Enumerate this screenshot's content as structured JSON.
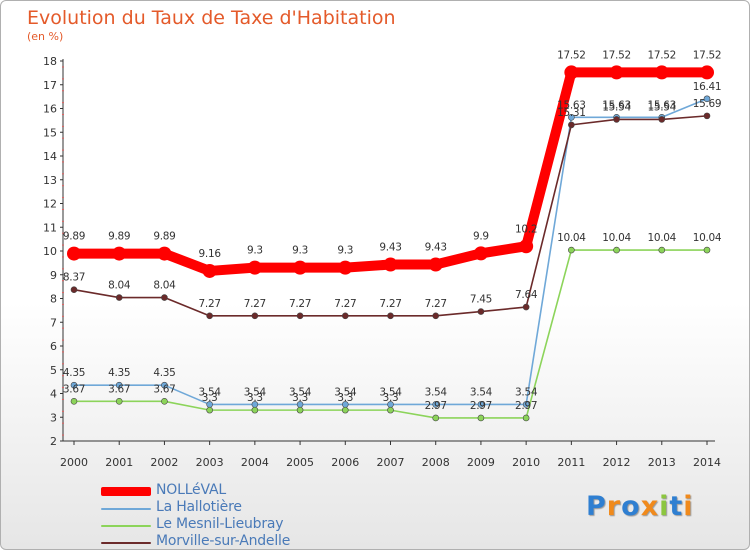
{
  "title": "Evolution du Taux de Taxe d'Habitation",
  "subtitle": "(en %)",
  "brand": {
    "letters": [
      "P",
      "r",
      "o",
      "x",
      "i",
      "t",
      "i"
    ],
    "colors": [
      "#2f7fd1",
      "#f08a1c",
      "#2f7fd1",
      "#f08a1c",
      "#8cc63f",
      "#2f7fd1",
      "#f08a1c"
    ]
  },
  "chart_data": {
    "type": "line",
    "title": "Evolution du Taux de Taxe d'Habitation",
    "ylabel": "(en %)",
    "xlabel": "",
    "x": [
      "2000",
      "2001",
      "2002",
      "2003",
      "2004",
      "2005",
      "2006",
      "2007",
      "2008",
      "2009",
      "2010",
      "2011",
      "2012",
      "2013",
      "2014"
    ],
    "ylim": [
      2,
      18
    ],
    "yticks": [
      "2",
      "3",
      "4",
      "5",
      "6",
      "7",
      "8",
      "9",
      "10",
      "11",
      "12",
      "13",
      "14",
      "15",
      "16",
      "17",
      "18"
    ],
    "grid": false,
    "legend": "bottom-left",
    "series": [
      {
        "name": "NOLLéVAL",
        "color": "#ff0000",
        "values": [
          9.89,
          9.89,
          9.89,
          9.16,
          9.3,
          9.3,
          9.3,
          9.43,
          9.43,
          9.9,
          10.2,
          17.52,
          17.52,
          17.52,
          17.52
        ],
        "labels": [
          "9.89",
          "9.89",
          "9.89",
          "9.16",
          "9.3",
          "9.3",
          "9.3",
          "9.43",
          "9.43",
          "9.9",
          "10.2",
          "17.52",
          "17.52",
          "17.52",
          "17.52"
        ]
      },
      {
        "name": "La Hallotière",
        "color": "#6fa8d8",
        "values": [
          4.35,
          4.35,
          4.35,
          3.54,
          3.54,
          3.54,
          3.54,
          3.54,
          3.54,
          3.54,
          3.54,
          15.63,
          15.63,
          15.63,
          16.41
        ],
        "labels": [
          "4.35",
          "4.35",
          "4.35",
          "3.54",
          "3.54",
          "3.54",
          "3.54",
          "3.54",
          "3.54",
          "3.54",
          "3.54",
          "15.63",
          "15.63",
          "15.63",
          "16.41"
        ]
      },
      {
        "name": "Le Mesnil-Lieubray",
        "color": "#8cd45a",
        "values": [
          3.67,
          3.67,
          3.67,
          3.3,
          3.3,
          3.3,
          3.3,
          3.3,
          2.97,
          2.97,
          2.97,
          10.04,
          10.04,
          10.04,
          10.04
        ],
        "labels": [
          "3.67",
          "3.67",
          "3.67",
          "3.3",
          "3.3",
          "3.3",
          "3.3",
          "3.3",
          "2.97",
          "2.97",
          "2.97",
          "10.04",
          "10.04",
          "10.04",
          "10.04"
        ]
      },
      {
        "name": "Morville-sur-Andelle",
        "color": "#6b2a2a",
        "values": [
          8.37,
          8.04,
          8.04,
          7.27,
          7.27,
          7.27,
          7.27,
          7.27,
          7.27,
          7.45,
          7.64,
          15.31,
          15.54,
          15.54,
          15.69
        ],
        "labels": [
          "8.37",
          "8.04",
          "8.04",
          "7.27",
          "7.27",
          "7.27",
          "7.27",
          "7.27",
          "7.27",
          "7.45",
          "7.64",
          "15.31",
          "15.54",
          "15.54",
          "15.69"
        ]
      }
    ]
  }
}
